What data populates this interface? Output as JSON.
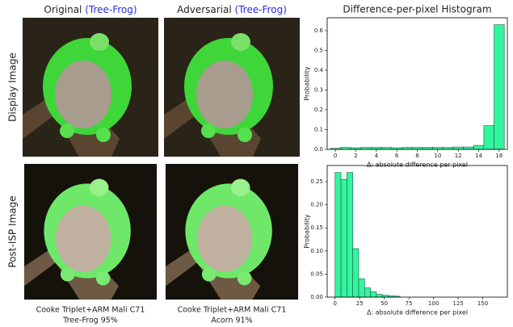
{
  "columns": [
    {
      "title": "Original",
      "label": "(Tree-Frog)",
      "label_color": "#2b2bdd"
    },
    {
      "title": "Adversarial",
      "label": "(Tree-Frog)",
      "label_color": "#2b2bdd"
    }
  ],
  "rows": [
    "Display Image",
    "Post-ISP Image"
  ],
  "captions": [
    {
      "camera": "Cooke Triplet+ARM Mali C71",
      "prediction": "Tree-Frog 95%",
      "color": "#22dd22"
    },
    {
      "camera": "Cooke Triplet+ARM Mali C71",
      "prediction": "Acorn 91%",
      "color": "#ee2222"
    }
  ],
  "chart_data": [
    {
      "type": "histogram",
      "title": "Difference-per-pixel Histogram",
      "xlabel": "Δ: absolute difference per pixel",
      "ylabel": "Probability",
      "bins": [
        -0.5,
        0.5,
        1.5,
        2.5,
        3.5,
        4.5,
        5.5,
        6.5,
        7.5,
        8.5,
        9.5,
        10.5,
        11.5,
        12.5,
        13.5,
        14.5,
        15.5,
        16.5
      ],
      "values": [
        0.005,
        0.01,
        0.008,
        0.01,
        0.01,
        0.01,
        0.008,
        0.01,
        0.01,
        0.01,
        0.01,
        0.01,
        0.012,
        0.012,
        0.02,
        0.12,
        0.63
      ],
      "color": "#33f5a0",
      "edge_color": "#1d5a3c",
      "xlim": [
        -0.8,
        16.8
      ],
      "ylim": [
        0,
        0.665
      ],
      "xticks": [
        0,
        2,
        4,
        6,
        8,
        10,
        12,
        14,
        16
      ],
      "yticks": [
        {
          "value": 0,
          "label": "0.0"
        },
        0.1,
        0.2,
        0.3,
        0.4,
        0.5,
        0.6
      ]
    },
    {
      "type": "histogram",
      "xlabel": "Δ: absolute difference per pixel",
      "ylabel": "Probability",
      "bins": [
        0,
        6,
        12,
        18,
        24,
        30,
        36,
        42,
        48,
        54,
        60,
        66
      ],
      "values": [
        0.27,
        0.255,
        0.27,
        0.105,
        0.04,
        0.02,
        0.012,
        0.006,
        0.004,
        0.003,
        0.002
      ],
      "color": "#33f5a0",
      "edge_color": "#1d5a3c",
      "xlim": [
        -8,
        175
      ],
      "ylim": [
        0,
        0.285
      ],
      "xticks": [
        0,
        25,
        50,
        75,
        100,
        125,
        150
      ],
      "yticks": [
        {
          "value": 0,
          "label": "0.00"
        },
        0.05,
        {
          "value": 0.1,
          "label": "0.10"
        },
        0.15,
        {
          "value": 0.2,
          "label": "0.20"
        },
        0.25
      ]
    }
  ]
}
